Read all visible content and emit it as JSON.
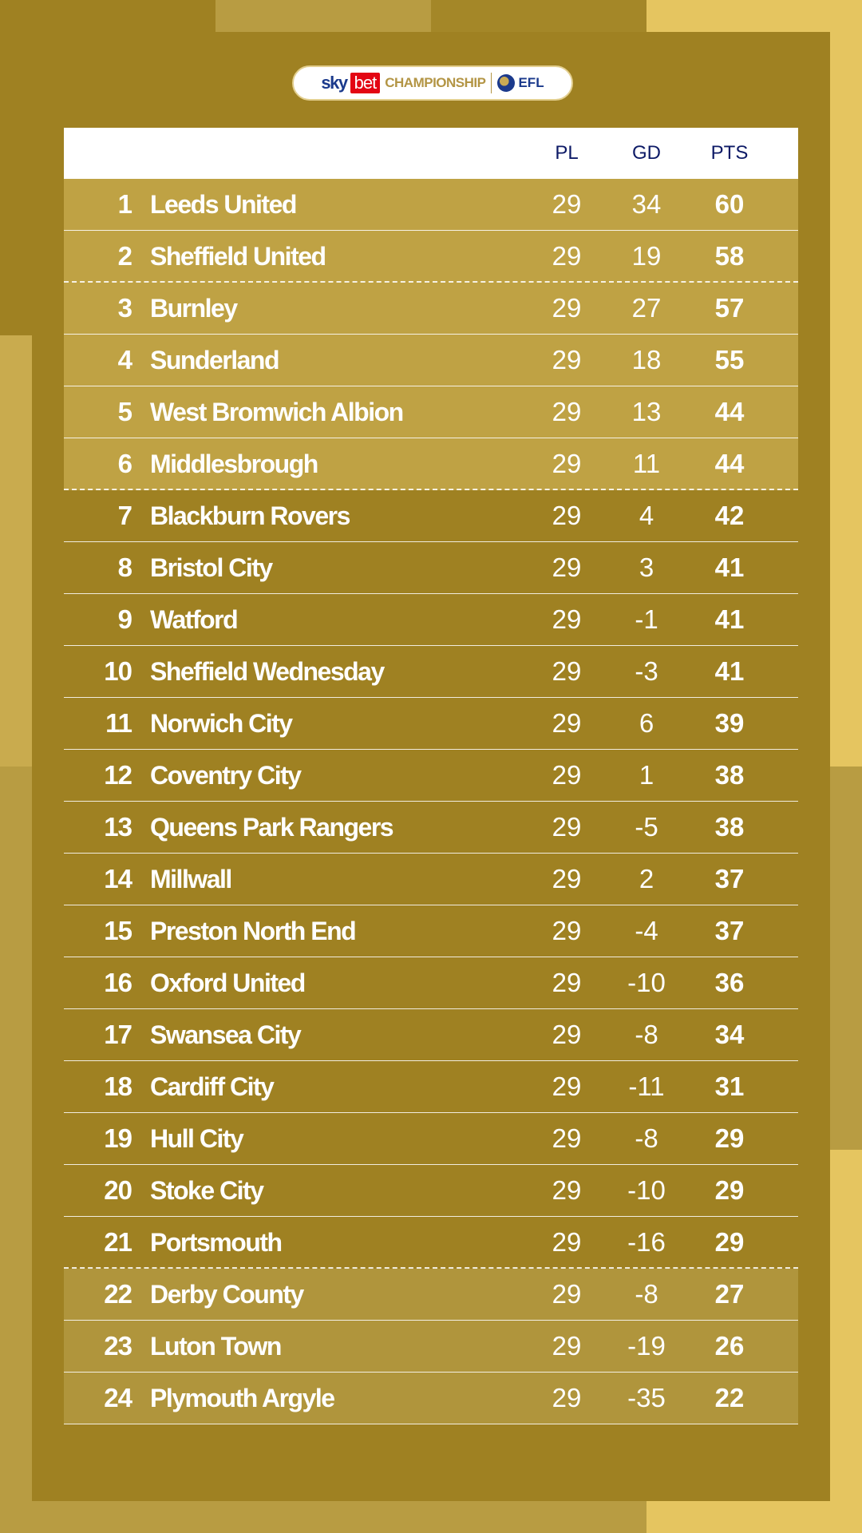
{
  "logo": {
    "sky": "sky",
    "bet": "bet",
    "competition": "CHAMPIONSHIP",
    "league": "EFL"
  },
  "colors": {
    "panel": "#9f8122",
    "highlight": "#bfa244",
    "header_text": "#0d1a66",
    "bet_red": "#e30613"
  },
  "table": {
    "columns": [
      "PL",
      "GD",
      "PTS"
    ],
    "rows": [
      {
        "pos": "1",
        "team": "Leeds United",
        "pl": "29",
        "gd": "34",
        "pts": "60"
      },
      {
        "pos": "2",
        "team": "Sheffield United",
        "pl": "29",
        "gd": "19",
        "pts": "58"
      },
      {
        "pos": "3",
        "team": "Burnley",
        "pl": "29",
        "gd": "27",
        "pts": "57"
      },
      {
        "pos": "4",
        "team": "Sunderland",
        "pl": "29",
        "gd": "18",
        "pts": "55"
      },
      {
        "pos": "5",
        "team": "West Bromwich Albion",
        "pl": "29",
        "gd": "13",
        "pts": "44"
      },
      {
        "pos": "6",
        "team": "Middlesbrough",
        "pl": "29",
        "gd": "11",
        "pts": "44"
      },
      {
        "pos": "7",
        "team": "Blackburn Rovers",
        "pl": "29",
        "gd": "4",
        "pts": "42"
      },
      {
        "pos": "8",
        "team": "Bristol City",
        "pl": "29",
        "gd": "3",
        "pts": "41"
      },
      {
        "pos": "9",
        "team": "Watford",
        "pl": "29",
        "gd": "-1",
        "pts": "41"
      },
      {
        "pos": "10",
        "team": "Sheffield Wednesday",
        "pl": "29",
        "gd": "-3",
        "pts": "41"
      },
      {
        "pos": "11",
        "team": "Norwich City",
        "pl": "29",
        "gd": "6",
        "pts": "39"
      },
      {
        "pos": "12",
        "team": "Coventry City",
        "pl": "29",
        "gd": "1",
        "pts": "38"
      },
      {
        "pos": "13",
        "team": "Queens Park Rangers",
        "pl": "29",
        "gd": "-5",
        "pts": "38"
      },
      {
        "pos": "14",
        "team": "Millwall",
        "pl": "29",
        "gd": "2",
        "pts": "37"
      },
      {
        "pos": "15",
        "team": "Preston North End",
        "pl": "29",
        "gd": "-4",
        "pts": "37"
      },
      {
        "pos": "16",
        "team": "Oxford United",
        "pl": "29",
        "gd": "-10",
        "pts": "36"
      },
      {
        "pos": "17",
        "team": "Swansea City",
        "pl": "29",
        "gd": "-8",
        "pts": "34"
      },
      {
        "pos": "18",
        "team": "Cardiff City",
        "pl": "29",
        "gd": "-11",
        "pts": "31"
      },
      {
        "pos": "19",
        "team": "Hull City",
        "pl": "29",
        "gd": "-8",
        "pts": "29"
      },
      {
        "pos": "20",
        "team": "Stoke City",
        "pl": "29",
        "gd": "-10",
        "pts": "29"
      },
      {
        "pos": "21",
        "team": "Portsmouth",
        "pl": "29",
        "gd": "-16",
        "pts": "29"
      },
      {
        "pos": "22",
        "team": "Derby County",
        "pl": "29",
        "gd": "-8",
        "pts": "27"
      },
      {
        "pos": "23",
        "team": "Luton Town",
        "pl": "29",
        "gd": "-19",
        "pts": "26"
      },
      {
        "pos": "24",
        "team": "Plymouth Argyle",
        "pl": "29",
        "gd": "-35",
        "pts": "22"
      }
    ]
  }
}
